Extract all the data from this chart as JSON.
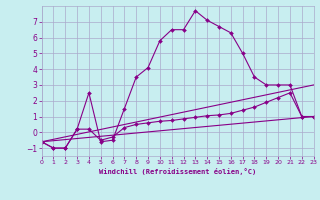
{
  "bg_color": "#c8eef0",
  "grid_color": "#aaaacc",
  "line_color": "#880088",
  "xlabel": "Windchill (Refroidissement éolien,°C)",
  "xlim": [
    0,
    23
  ],
  "ylim": [
    -1.5,
    8.0
  ],
  "xticks": [
    0,
    1,
    2,
    3,
    4,
    5,
    6,
    7,
    8,
    9,
    10,
    11,
    12,
    13,
    14,
    15,
    16,
    17,
    18,
    19,
    20,
    21,
    22,
    23
  ],
  "yticks": [
    -1,
    0,
    1,
    2,
    3,
    4,
    5,
    6,
    7
  ],
  "series1_x": [
    0,
    1,
    2,
    3,
    4,
    5,
    6,
    7,
    8,
    9,
    10,
    11,
    12,
    13,
    14,
    15,
    16,
    17,
    18,
    19,
    20,
    21,
    22,
    23
  ],
  "series1_y": [
    -0.6,
    -1.0,
    -1.0,
    0.2,
    2.5,
    -0.6,
    -0.5,
    1.5,
    3.5,
    4.1,
    5.8,
    6.5,
    6.5,
    7.7,
    7.1,
    6.7,
    6.3,
    5.0,
    3.5,
    3.0,
    3.0,
    3.0,
    1.0,
    1.0
  ],
  "series2_x": [
    0,
    1,
    2,
    3,
    4,
    5,
    6,
    7,
    8,
    9,
    10,
    11,
    12,
    13,
    14,
    15,
    16,
    17,
    18,
    19,
    20,
    21,
    22,
    23
  ],
  "series2_y": [
    -0.6,
    -1.0,
    -1.0,
    0.2,
    0.2,
    -0.5,
    -0.3,
    0.3,
    0.5,
    0.6,
    0.7,
    0.75,
    0.85,
    0.95,
    1.05,
    1.1,
    1.2,
    1.4,
    1.6,
    1.9,
    2.2,
    2.5,
    1.0,
    1.0
  ],
  "series3_x": [
    0,
    23
  ],
  "series3_y": [
    -0.6,
    1.0
  ],
  "series4_x": [
    0,
    23
  ],
  "series4_y": [
    -0.6,
    3.0
  ]
}
